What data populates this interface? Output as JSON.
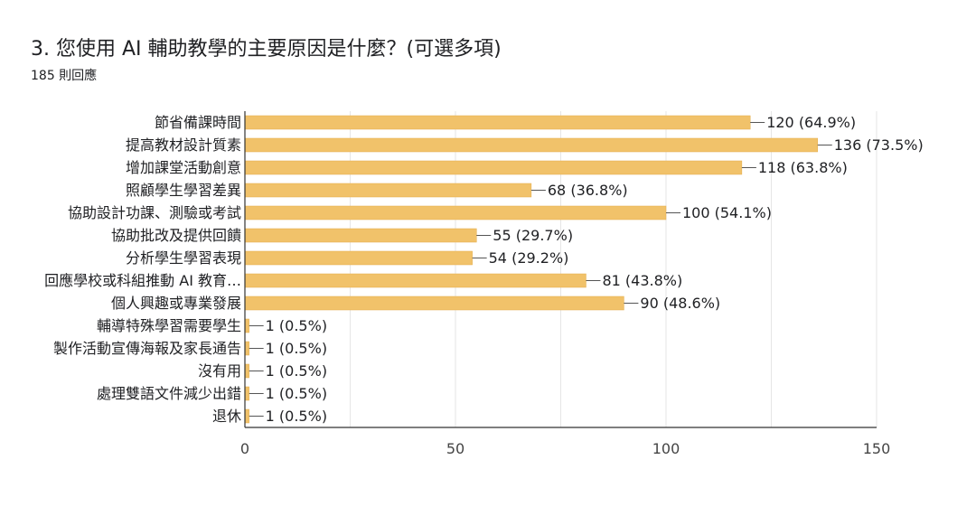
{
  "header": {
    "title": "3. 您使用 AI 輔助教學的主要原因是什麼？(可選多項)",
    "subtitle": "185 則回應"
  },
  "colors": {
    "bar": "#f1c26a",
    "bar_stroke": "#e3ad4c",
    "grid": "#e6e6e6",
    "axis": "#333333"
  },
  "chart_data": {
    "type": "bar",
    "orientation": "horizontal",
    "title": "3. 您使用 AI 輔助教學的主要原因是什麼？(可選多項)",
    "subtitle": "185 則回應",
    "categories": [
      "節省備課時間",
      "提高教材設計質素",
      "增加課堂活動創意",
      "照顧學生學習差異",
      "協助設計功課、測驗或考試",
      "協助批改及提供回饋",
      "分析學生學習表現",
      "回應學校或科組推動 AI 教育…",
      "個人興趣或專業發展",
      "輔導特殊學習需要學生",
      "製作活動宣傳海報及家長通告",
      "沒有用",
      "處理雙語文件減少出錯",
      "退休"
    ],
    "values": [
      120,
      136,
      118,
      68,
      100,
      55,
      54,
      81,
      90,
      1,
      1,
      1,
      1,
      1
    ],
    "labels": [
      "120 (64.9%)",
      "136 (73.5%)",
      "118 (63.8%)",
      "68 (36.8%)",
      "100 (54.1%)",
      "55 (29.7%)",
      "54 (29.2%)",
      "81 (43.8%)",
      "90 (48.6%)",
      "1 (0.5%)",
      "1 (0.5%)",
      "1 (0.5%)",
      "1 (0.5%)",
      "1 (0.5%)"
    ],
    "xlim": [
      0,
      150
    ],
    "xticks": [
      "0",
      "50",
      "100",
      "150"
    ],
    "grid": true,
    "legend": "none"
  }
}
